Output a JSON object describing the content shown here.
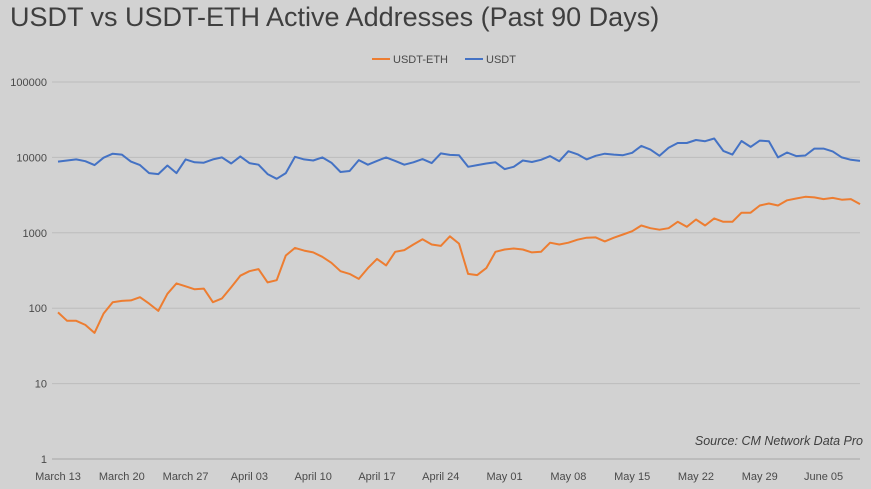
{
  "chart_data": {
    "type": "line",
    "title": "USDT vs USDT-ETH Active Addresses (Past 90 Days)",
    "xlabel": "",
    "ylabel": "",
    "y_scale": "log",
    "ylim": [
      1,
      100000
    ],
    "y_ticks": [
      "1",
      "10",
      "100",
      "1000",
      "10000",
      "100000"
    ],
    "x_ticks": [
      "March 13",
      "March 20",
      "March 27",
      "April 03",
      "April 10",
      "April 17",
      "April 24",
      "May 01",
      "May 08",
      "May 15",
      "May 22",
      "May 29",
      "June 05"
    ],
    "x_start": "2019-03-13",
    "x_end": "2019-06-09",
    "grid": true,
    "legend_position": "top-center",
    "source": "Source: CM Network Data Pro",
    "series": [
      {
        "name": "USDT-ETH",
        "color": "#ed7d31",
        "values": [
          88,
          68,
          68,
          60,
          47,
          85,
          120,
          125,
          127,
          140,
          115,
          92,
          155,
          213,
          195,
          178,
          182,
          120,
          135,
          190,
          270,
          310,
          330,
          220,
          235,
          500,
          630,
          580,
          550,
          480,
          400,
          310,
          285,
          245,
          340,
          450,
          370,
          560,
          590,
          700,
          820,
          700,
          670,
          900,
          720,
          285,
          275,
          340,
          560,
          600,
          620,
          600,
          550,
          560,
          740,
          700,
          740,
          810,
          860,
          870,
          770,
          860,
          950,
          1050,
          1250,
          1150,
          1100,
          1150,
          1400,
          1200,
          1500,
          1250,
          1550,
          1400,
          1400,
          1850,
          1850,
          2300,
          2450,
          2300,
          2700,
          2850,
          3000,
          2950,
          2800,
          2900,
          2750,
          2800,
          2400
        ],
        "x": [
          "2019-03-13",
          "2019-03-14",
          "2019-03-15",
          "2019-03-16",
          "2019-03-17",
          "2019-03-18",
          "2019-03-19",
          "2019-03-20",
          "2019-03-21",
          "2019-03-22",
          "2019-03-23",
          "2019-03-24",
          "2019-03-25",
          "2019-03-26",
          "2019-03-27",
          "2019-03-28",
          "2019-03-29",
          "2019-03-30",
          "2019-03-31",
          "2019-04-01",
          "2019-04-02",
          "2019-04-03",
          "2019-04-04",
          "2019-04-05",
          "2019-04-06",
          "2019-04-07",
          "2019-04-08",
          "2019-04-09",
          "2019-04-10",
          "2019-04-11",
          "2019-04-12",
          "2019-04-13",
          "2019-04-14",
          "2019-04-15",
          "2019-04-16",
          "2019-04-17",
          "2019-04-18",
          "2019-04-19",
          "2019-04-20",
          "2019-04-21",
          "2019-04-22",
          "2019-04-23",
          "2019-04-24",
          "2019-04-25",
          "2019-04-26",
          "2019-04-27",
          "2019-04-28",
          "2019-04-29",
          "2019-04-30",
          "2019-05-01",
          "2019-05-02",
          "2019-05-03",
          "2019-05-04",
          "2019-05-05",
          "2019-05-06",
          "2019-05-07",
          "2019-05-08",
          "2019-05-09",
          "2019-05-10",
          "2019-05-11",
          "2019-05-12",
          "2019-05-13",
          "2019-05-14",
          "2019-05-15",
          "2019-05-16",
          "2019-05-17",
          "2019-05-18",
          "2019-05-19",
          "2019-05-20",
          "2019-05-21",
          "2019-05-22",
          "2019-05-23",
          "2019-05-24",
          "2019-05-25",
          "2019-05-26",
          "2019-05-27",
          "2019-05-28",
          "2019-05-29",
          "2019-05-30",
          "2019-05-31",
          "2019-06-01",
          "2019-06-02",
          "2019-06-03",
          "2019-06-04",
          "2019-06-05",
          "2019-06-06",
          "2019-06-07",
          "2019-06-08",
          "2019-06-09"
        ]
      },
      {
        "name": "USDT",
        "color": "#4472c4",
        "values": [
          8800,
          9100,
          9400,
          8900,
          7900,
          9900,
          11200,
          10900,
          8800,
          7900,
          6200,
          6000,
          7800,
          6200,
          9400,
          8600,
          8500,
          9400,
          10000,
          8300,
          10300,
          8400,
          8000,
          6000,
          5200,
          6200,
          10200,
          9400,
          9100,
          10000,
          8500,
          6400,
          6600,
          9200,
          8000,
          9000,
          10000,
          9000,
          8000,
          8600,
          9500,
          8400,
          11300,
          10800,
          10700,
          7500,
          7900,
          8300,
          8600,
          7000,
          7500,
          9100,
          8700,
          9300,
          10400,
          8900,
          12100,
          11000,
          9400,
          10500,
          11200,
          10900,
          10700,
          11500,
          14200,
          12700,
          10500,
          13400,
          15500,
          15500,
          17000,
          16400,
          17800,
          12200,
          10900,
          16500,
          13800,
          16700,
          16400,
          10000,
          11600,
          10400,
          10600,
          13100,
          13100,
          12000,
          10000,
          9300,
          9000
        ],
        "x": [
          "2019-03-13",
          "2019-03-14",
          "2019-03-15",
          "2019-03-16",
          "2019-03-17",
          "2019-03-18",
          "2019-03-19",
          "2019-03-20",
          "2019-03-21",
          "2019-03-22",
          "2019-03-23",
          "2019-03-24",
          "2019-03-25",
          "2019-03-26",
          "2019-03-27",
          "2019-03-28",
          "2019-03-29",
          "2019-03-30",
          "2019-03-31",
          "2019-04-01",
          "2019-04-02",
          "2019-04-03",
          "2019-04-04",
          "2019-04-05",
          "2019-04-06",
          "2019-04-07",
          "2019-04-08",
          "2019-04-09",
          "2019-04-10",
          "2019-04-11",
          "2019-04-12",
          "2019-04-13",
          "2019-04-14",
          "2019-04-15",
          "2019-04-16",
          "2019-04-17",
          "2019-04-18",
          "2019-04-19",
          "2019-04-20",
          "2019-04-21",
          "2019-04-22",
          "2019-04-23",
          "2019-04-24",
          "2019-04-25",
          "2019-04-26",
          "2019-04-27",
          "2019-04-28",
          "2019-04-29",
          "2019-04-30",
          "2019-05-01",
          "2019-05-02",
          "2019-05-03",
          "2019-05-04",
          "2019-05-05",
          "2019-05-06",
          "2019-05-07",
          "2019-05-08",
          "2019-05-09",
          "2019-05-10",
          "2019-05-11",
          "2019-05-12",
          "2019-05-13",
          "2019-05-14",
          "2019-05-15",
          "2019-05-16",
          "2019-05-17",
          "2019-05-18",
          "2019-05-19",
          "2019-05-20",
          "2019-05-21",
          "2019-05-22",
          "2019-05-23",
          "2019-05-24",
          "2019-05-25",
          "2019-05-26",
          "2019-05-27",
          "2019-05-28",
          "2019-05-29",
          "2019-05-30",
          "2019-05-31",
          "2019-06-01",
          "2019-06-02",
          "2019-06-03",
          "2019-06-04",
          "2019-06-05",
          "2019-06-06",
          "2019-06-07",
          "2019-06-08",
          "2019-06-09"
        ]
      }
    ]
  }
}
